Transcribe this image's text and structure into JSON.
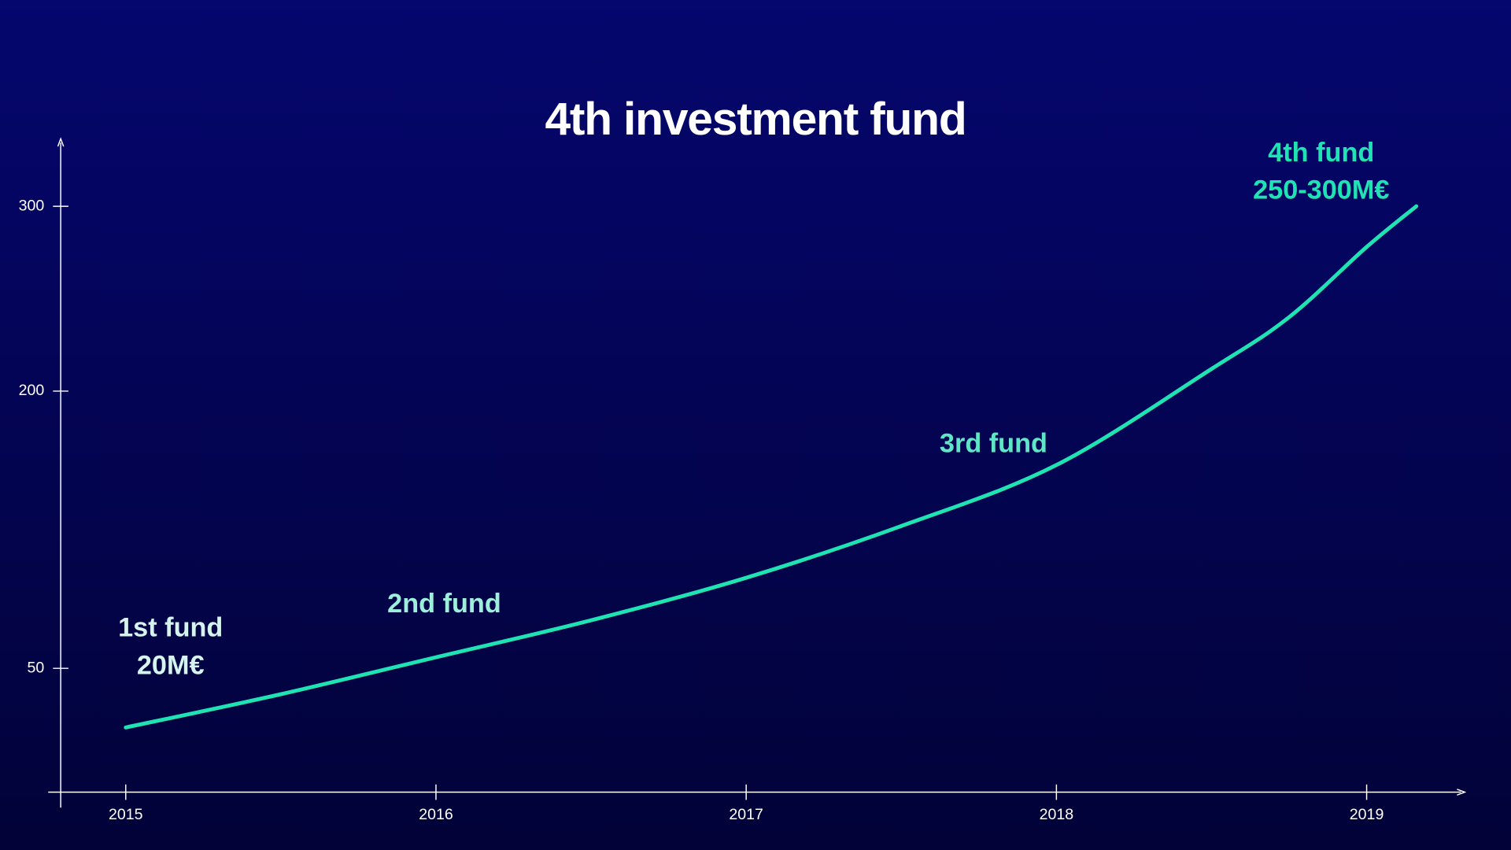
{
  "chart_data": {
    "type": "line",
    "title": "4th investment fund",
    "x": [
      2015,
      2015.5,
      2016,
      2016.5,
      2017,
      2017.5,
      2018,
      2018.5,
      2018.75,
      2019,
      2019.16
    ],
    "series": [
      {
        "color": "#1fe3b3",
        "values": [
          18,
          36,
          56,
          76,
          99,
          127,
          160,
          212,
          240,
          278,
          300
        ]
      }
    ],
    "xlim": [
      2014.75,
      2019.31
    ],
    "xticks": [
      2015,
      2016,
      2017,
      2018,
      2019
    ],
    "ylim": [
      -17,
      336
    ],
    "yticks": [
      300,
      200,
      50
    ],
    "annotations": [
      {
        "lines": [
          "1st  fund",
          "20M€"
        ],
        "color": "#d6f4ee"
      },
      {
        "lines": [
          "2nd fund"
        ],
        "color": "#9eeedc"
      },
      {
        "lines": [
          "3rd fund"
        ],
        "color": "#5fe6c6"
      },
      {
        "lines": [
          "4th fund",
          "250-300M€"
        ],
        "color": "#1fe3b3"
      }
    ]
  }
}
